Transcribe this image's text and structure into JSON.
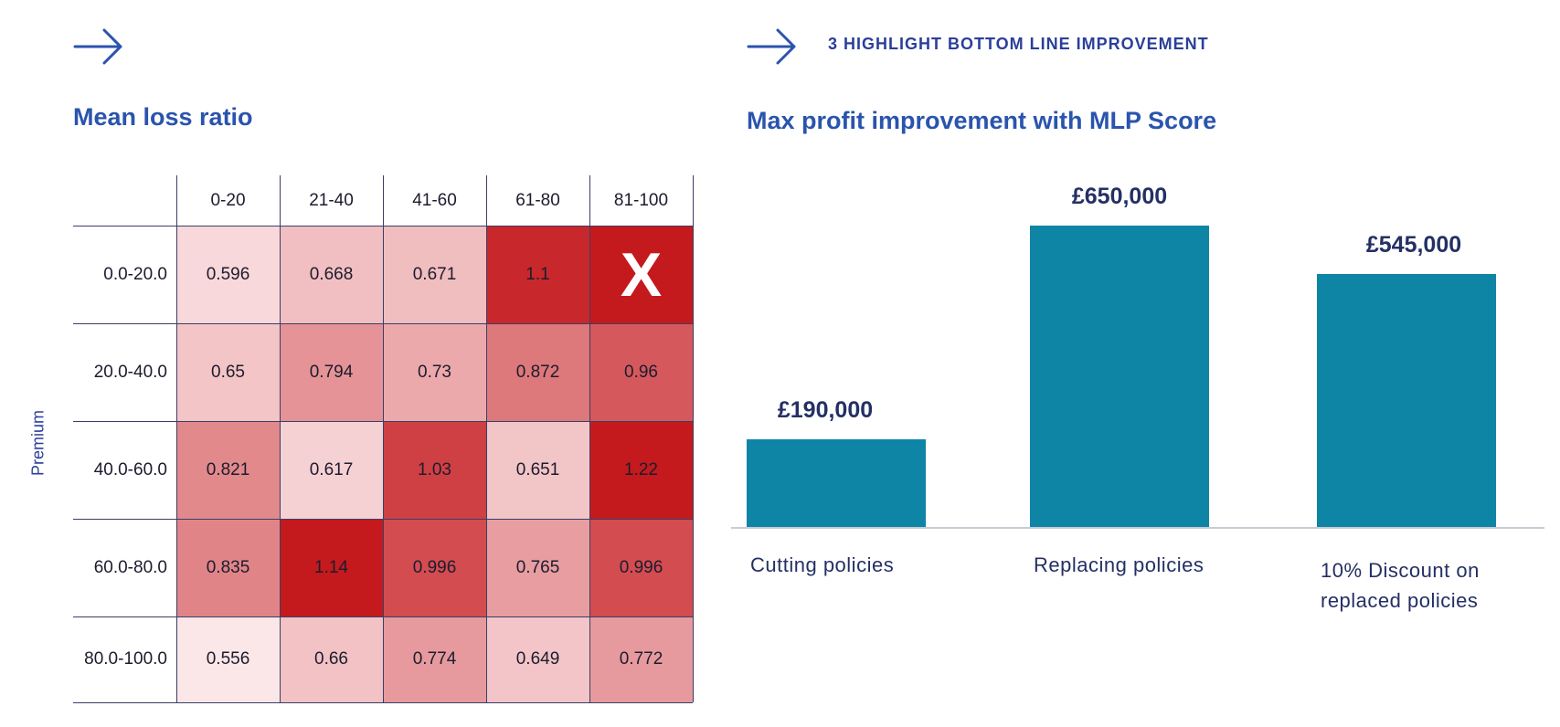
{
  "left_panel": {
    "arrow_icon": "arrow-right-icon",
    "title": "Mean loss ratio"
  },
  "right_panel": {
    "arrow_icon": "arrow-right-icon",
    "subtitle": "3 HIGHLIGHT BOTTOM LINE IMPROVEMENT",
    "title": "Max profit improvement with MLP Score"
  },
  "colors": {
    "heading": "#2a54ad",
    "bar": "#0f85a6",
    "heat_low": "#fce8ea",
    "heat_high": "#c41a1e"
  },
  "chart_data": [
    {
      "type": "heatmap",
      "title": "Mean loss ratio",
      "ylabel": "Premium",
      "columns": [
        "0-20",
        "21-40",
        "41-60",
        "61-80",
        "81-100"
      ],
      "rows": [
        "0.0-20.0",
        "20.0-40.0",
        "40.0-60.0",
        "60.0-80.0",
        "80.0-100.0"
      ],
      "values": [
        [
          "0.596",
          "0.668",
          "0.671",
          "1.1",
          "X"
        ],
        [
          "0.65",
          "0.794",
          "0.73",
          "0.872",
          "0.96"
        ],
        [
          "0.821",
          "0.617",
          "1.03",
          "0.651",
          "1.22"
        ],
        [
          "0.835",
          "1.14",
          "0.996",
          "0.765",
          "0.996"
        ],
        [
          "0.556",
          "0.66",
          "0.774",
          "0.649",
          "0.772"
        ]
      ]
    },
    {
      "type": "bar",
      "title": "Max profit improvement with MLP Score",
      "categories": [
        "Cutting policies",
        "Replacing policies",
        "10% Discount on replaced policies"
      ],
      "values": [
        190000,
        650000,
        545000
      ],
      "value_labels": [
        "£190,000",
        "£650,000",
        "£545,000"
      ],
      "ylim": [
        0,
        650000
      ]
    }
  ]
}
